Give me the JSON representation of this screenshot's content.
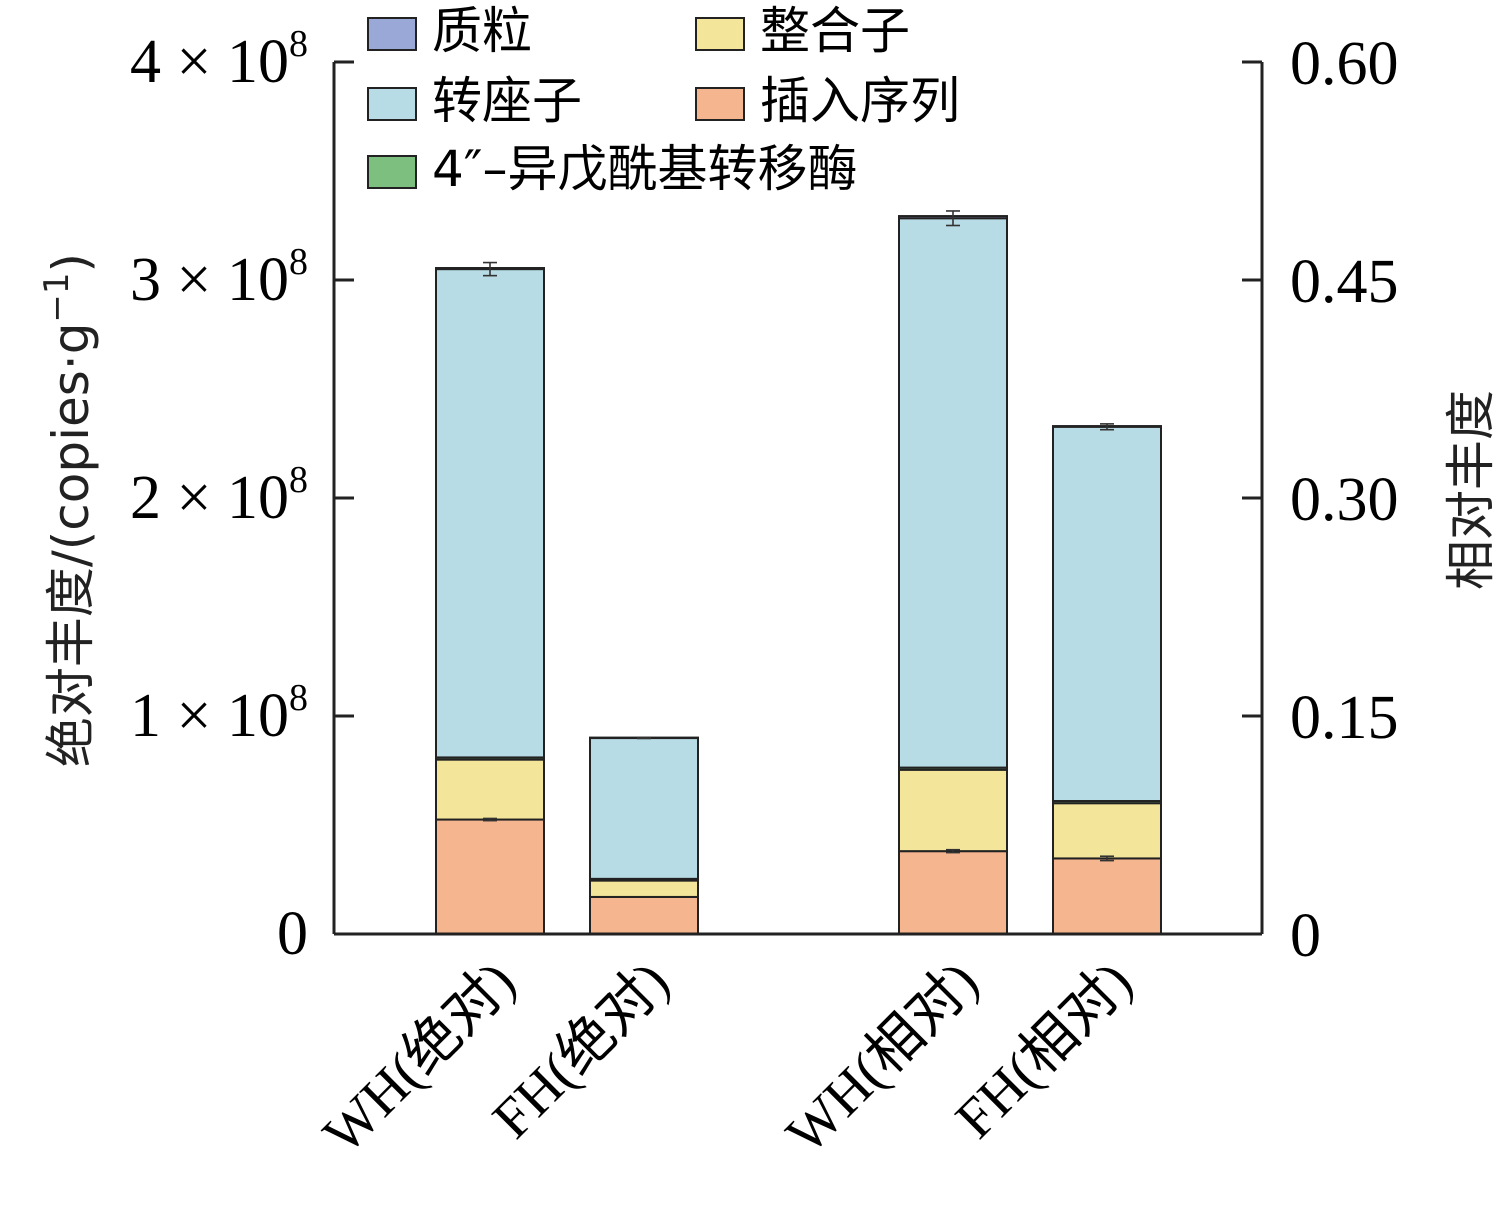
{
  "chart_data": {
    "type": "bar",
    "stacked": true,
    "categories": [
      "WH(绝对)",
      "FH(绝对)",
      "WH(相对)",
      "FH(相对)"
    ],
    "axis_for_category": [
      "left",
      "left",
      "right",
      "right"
    ],
    "series": [
      {
        "name": "插入序列",
        "color": "#f4b58f",
        "values": [
          52500000.0,
          17000000.0,
          0.057,
          0.052
        ]
      },
      {
        "name": "整合子",
        "color": "#f3e59a",
        "values": [
          27500000.0,
          7500000.0,
          0.056,
          0.038
        ]
      },
      {
        "name": "4″–异戊酰基转移酶",
        "color": "#7cbf7e",
        "values": [
          1000000.0,
          800000.0,
          0.0015,
          0.0015
        ]
      },
      {
        "name": "转座子",
        "color": "#b8dce5",
        "values": [
          224000000.0,
          64600000.0,
          0.378,
          0.2575
        ]
      },
      {
        "name": "质粒",
        "color": "#9aa8d8",
        "values": [
          500000.0,
          200000.0,
          0.0015,
          0.0005
        ]
      }
    ],
    "error_bars": [
      {
        "category": "WH(绝对)",
        "series": "转座子",
        "error": 3000000.0
      },
      {
        "category": "WH(绝对)",
        "series": "插入序列",
        "error": 500000.0
      },
      {
        "category": "FH(绝对)",
        "series": "转座子",
        "error": 200000.0
      },
      {
        "category": "WH(相对)",
        "series": "转座子",
        "error": 0.005
      },
      {
        "category": "WH(相对)",
        "series": "插入序列",
        "error": 0.001
      },
      {
        "category": "FH(相对)",
        "series": "转座子",
        "error": 0.002
      },
      {
        "category": "FH(相对)",
        "series": "插入序列",
        "error": 0.0015
      }
    ],
    "left_axis": {
      "label": "绝对丰度/(copies·g",
      "label_sup": "−1",
      "label_close": ")",
      "ylim": [
        0,
        400000000
      ],
      "ticks": [
        {
          "value": 0,
          "mantissa": "0",
          "exp": ""
        },
        {
          "value": 100000000,
          "mantissa": "1 × 10",
          "exp": "8"
        },
        {
          "value": 200000000,
          "mantissa": "2 × 10",
          "exp": "8"
        },
        {
          "value": 300000000,
          "mantissa": "3 × 10",
          "exp": "8"
        },
        {
          "value": 400000000,
          "mantissa": "4 × 10",
          "exp": "8"
        }
      ]
    },
    "right_axis": {
      "label": "相对丰度",
      "ylim": [
        0,
        0.6
      ],
      "ticks": [
        {
          "value": 0,
          "label": "0"
        },
        {
          "value": 0.15,
          "label": "0.15"
        },
        {
          "value": 0.3,
          "label": "0.30"
        },
        {
          "value": 0.45,
          "label": "0.45"
        },
        {
          "value": 0.6,
          "label": "0.60"
        }
      ]
    },
    "legend": {
      "placement": "top-left",
      "entries": [
        {
          "name": "质粒",
          "color": "#9aa8d8"
        },
        {
          "name": "整合子",
          "color": "#f3e59a"
        },
        {
          "name": "转座子",
          "color": "#b8dce5"
        },
        {
          "name": "插入序列",
          "color": "#f4b58f"
        },
        {
          "name": "4″–异戊酰基转移酶",
          "color": "#7cbf7e"
        }
      ]
    },
    "grid": false
  }
}
